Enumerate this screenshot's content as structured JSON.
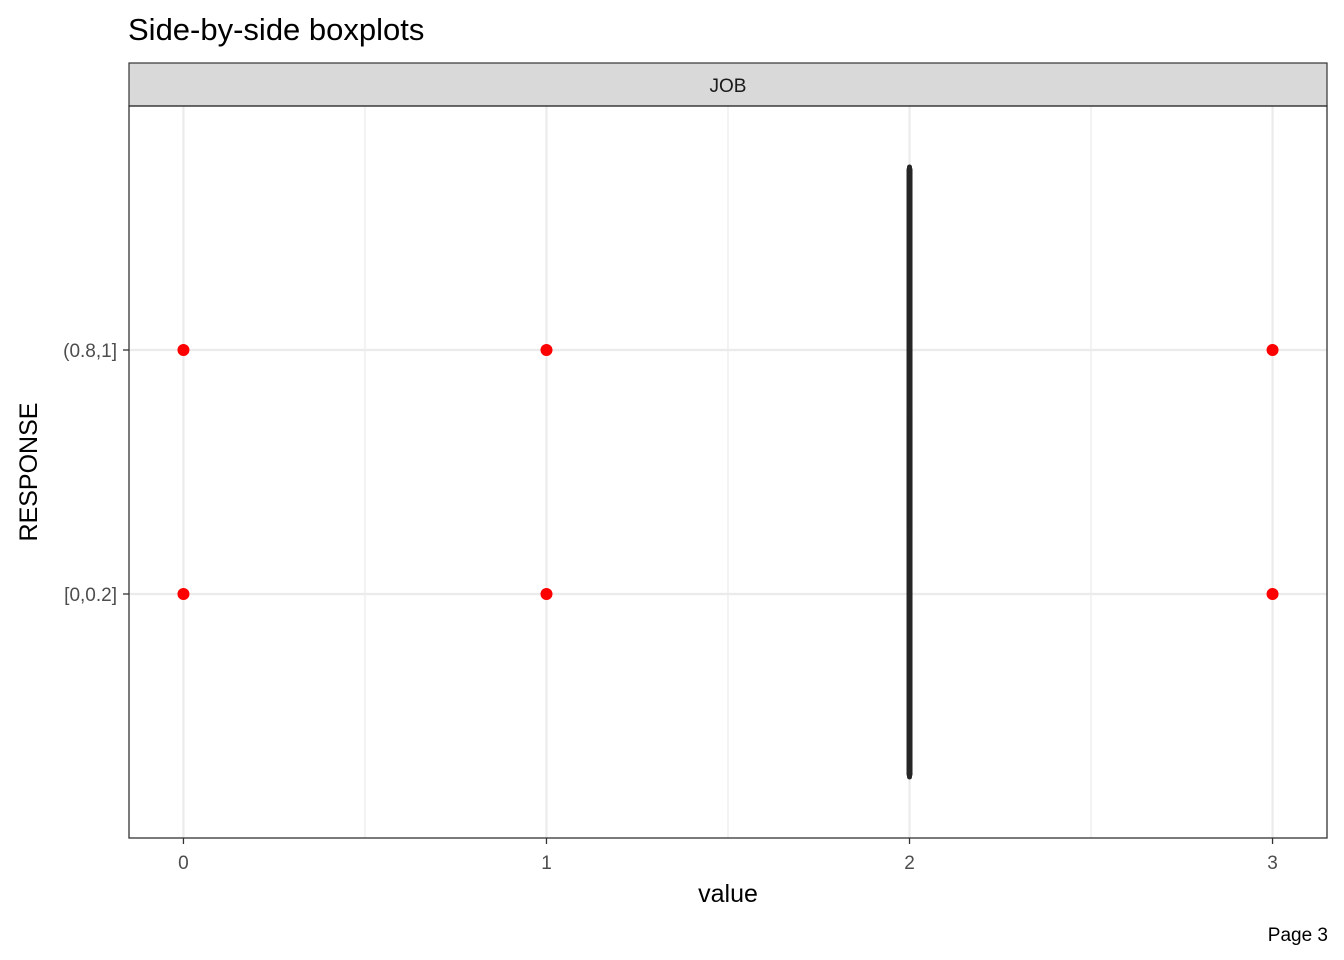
{
  "chart_data": {
    "type": "boxplot",
    "title": "Side-by-side boxplots",
    "facet": "JOB",
    "xlabel": "value",
    "ylabel": "RESPONSE",
    "caption": "Page 3",
    "x_ticks": [
      0,
      1,
      2,
      3
    ],
    "xlim": [
      -0.15,
      3.15
    ],
    "categories": [
      "[0,0.2]",
      "(0.8,1]"
    ],
    "boxes": [
      {
        "category": "[0,0.2]",
        "min": 2,
        "q1": 2,
        "median": 2,
        "q3": 2,
        "max": 2,
        "outliers": [
          0,
          1,
          3
        ]
      },
      {
        "category": "(0.8,1]",
        "min": 2,
        "q1": 2,
        "median": 2,
        "q3": 2,
        "max": 2,
        "outliers": [
          0,
          1,
          3
        ]
      }
    ],
    "grid": true,
    "colors": {
      "outlier": "#ff0000",
      "box": "#262626",
      "strip_fill": "#d9d9d9",
      "panel_border": "#333333",
      "grid_major": "#ebebeb"
    }
  }
}
